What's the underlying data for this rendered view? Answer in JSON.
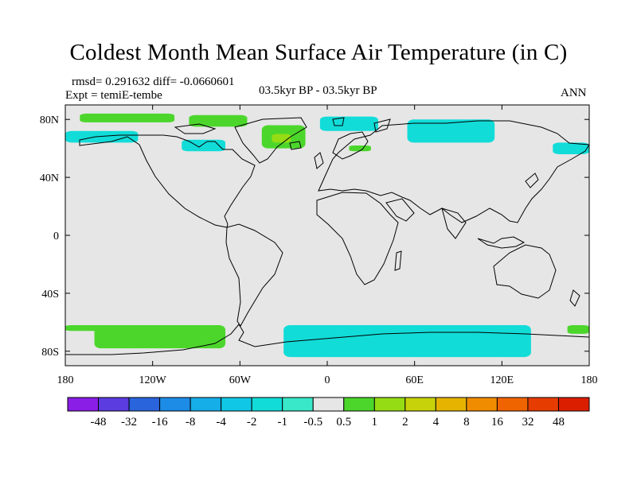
{
  "title": "Coldest Month Mean Surface Air Temperature (in C)",
  "stats_line": "rmsd= 0.291632  diff= -0.0660601",
  "experiment_line": "Expt = temiE-tembe",
  "center_label": "03.5kyr BP - 03.5kyr BP",
  "season_label": "ANN",
  "chart_data": {
    "type": "heatmap",
    "title": "Coldest Month Mean Surface Air Temperature (in C)",
    "xlabel": "",
    "ylabel": "",
    "xlim": [
      -180,
      180
    ],
    "ylim": [
      -90,
      90
    ],
    "x_ticks": [
      {
        "value": -180,
        "label": "180"
      },
      {
        "value": -120,
        "label": "120W"
      },
      {
        "value": -60,
        "label": "60W"
      },
      {
        "value": 0,
        "label": "0"
      },
      {
        "value": 60,
        "label": "60E"
      },
      {
        "value": 120,
        "label": "120E"
      },
      {
        "value": 180,
        "label": "180"
      }
    ],
    "y_ticks": [
      {
        "value": 80,
        "label": "80N"
      },
      {
        "value": 40,
        "label": "40N"
      },
      {
        "value": 0,
        "label": "0"
      },
      {
        "value": -40,
        "label": "40S"
      },
      {
        "value": -80,
        "label": "80S"
      }
    ],
    "colorbar": {
      "levels": [
        "-48",
        "-32",
        "-16",
        "-8",
        "-4",
        "-2",
        "-1",
        "-0.5",
        "0.5",
        "1",
        "2",
        "4",
        "8",
        "16",
        "32",
        "48"
      ],
      "colors": [
        "#8a1ee6",
        "#5a3ce0",
        "#2a64dc",
        "#1d8ce6",
        "#16aee8",
        "#10c8e6",
        "#12dcd8",
        "#38e8c8",
        "#e6e6e6",
        "#4cd62c",
        "#96dc14",
        "#c8d20a",
        "#e6b400",
        "#f08c00",
        "#f06400",
        "#e63c00",
        "#dc1e00"
      ]
    },
    "anomaly_regions": [
      {
        "name": "alaska-arctic",
        "color": "#4cd62c",
        "lon": [
          -170,
          -105
        ],
        "lat": [
          78,
          84
        ]
      },
      {
        "name": "canadian-arctic",
        "color": "#4cd62c",
        "lon": [
          -95,
          -55
        ],
        "lat": [
          75,
          83
        ]
      },
      {
        "name": "greenland-east",
        "color": "#4cd62c",
        "lon": [
          -45,
          -15
        ],
        "lat": [
          60,
          76
        ]
      },
      {
        "name": "greenland-north",
        "color": "#96dc14",
        "lon": [
          -38,
          -25
        ],
        "lat": [
          64,
          70
        ]
      },
      {
        "name": "beaufort-sea",
        "color": "#12dcd8",
        "lon": [
          -180,
          -130
        ],
        "lat": [
          64,
          72
        ]
      },
      {
        "name": "hudson-bay",
        "color": "#12dcd8",
        "lon": [
          -100,
          -70
        ],
        "lat": [
          58,
          66
        ]
      },
      {
        "name": "barents-kara",
        "color": "#12dcd8",
        "lon": [
          -5,
          35
        ],
        "lat": [
          72,
          82
        ]
      },
      {
        "name": "laptev-sea",
        "color": "#12dcd8",
        "lon": [
          55,
          115
        ],
        "lat": [
          64,
          80
        ]
      },
      {
        "name": "scandinavia",
        "color": "#4cd62c",
        "lon": [
          15,
          30
        ],
        "lat": [
          58,
          62
        ]
      },
      {
        "name": "kamchatka",
        "color": "#12dcd8",
        "lon": [
          155,
          180
        ],
        "lat": [
          56,
          64
        ]
      },
      {
        "name": "west-antarctica",
        "color": "#4cd62c",
        "lon": [
          -160,
          -70
        ],
        "lat": [
          -78,
          -62
        ]
      },
      {
        "name": "east-antarctica",
        "color": "#12dcd8",
        "lon": [
          -30,
          140
        ],
        "lat": [
          -84,
          -62
        ]
      },
      {
        "name": "southern-ocean-west",
        "color": "#4cd62c",
        "lon": [
          -180,
          -150
        ],
        "lat": [
          -66,
          -62
        ]
      },
      {
        "name": "southern-ocean-east",
        "color": "#4cd62c",
        "lon": [
          165,
          180
        ],
        "lat": [
          -68,
          -62
        ]
      }
    ]
  }
}
